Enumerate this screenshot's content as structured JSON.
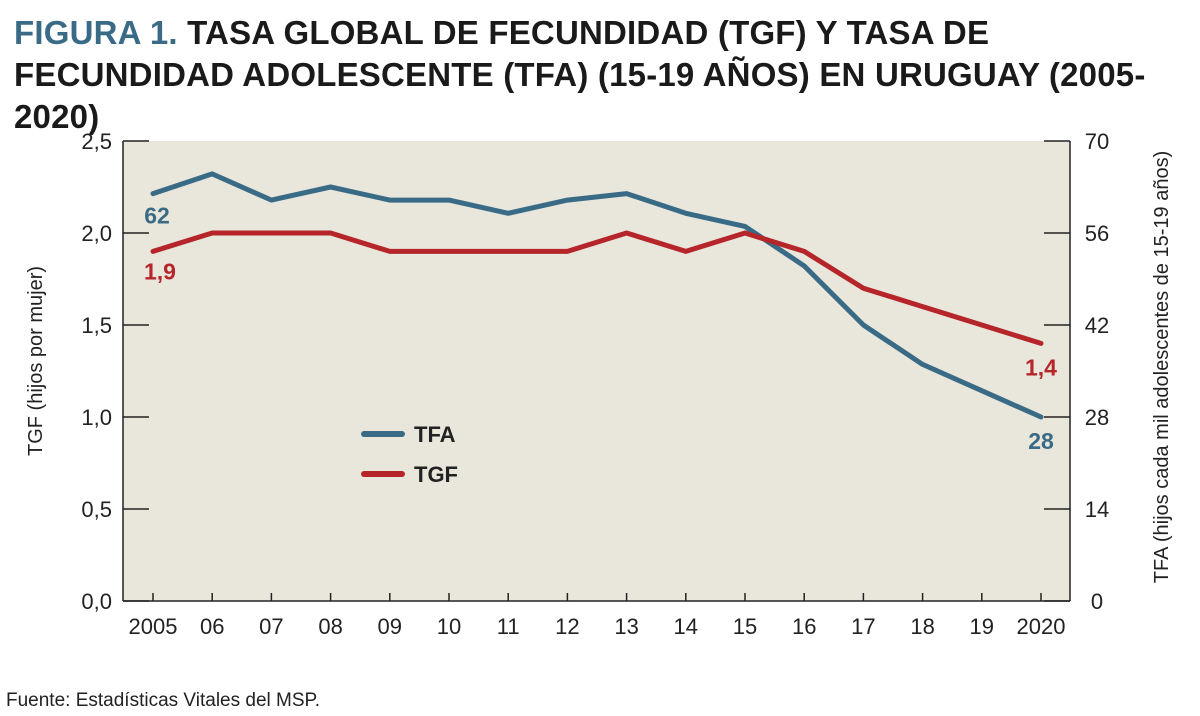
{
  "header": {
    "prefix": "FIGURA 1.",
    "title": "TASA GLOBAL DE FECUNDIDAD (TGF) Y TASA DE FECUNDIDAD ADOLESCENTE (TFA) (15-19 AÑOS) EN URUGUAY (2005-2020)"
  },
  "footer": {
    "source": "Fuente: Estadísticas Vitales del MSP."
  },
  "colors": {
    "tfa": "#3a6b86",
    "tgf": "#b5252a",
    "plot_bg": "#e9e6dc"
  },
  "chart_data": {
    "type": "line",
    "title": "TASA GLOBAL DE FECUNDIDAD (TGF) Y TASA DE FECUNDIDAD ADOLESCENTE (TFA) (15-19 AÑOS) EN URUGUAY (2005-2020)",
    "categories": [
      "2005",
      "06",
      "07",
      "08",
      "09",
      "10",
      "11",
      "12",
      "13",
      "14",
      "15",
      "16",
      "17",
      "18",
      "19",
      "2020"
    ],
    "ylabel_left": "TGF (hijos por mujer)",
    "ylabel_right": "TFA (hijos cada mil adolescentes de 15-19 años)",
    "ylim_left": [
      0,
      2.5
    ],
    "ylim_right": [
      0,
      70
    ],
    "yticks_left": [
      "0,0",
      "0,5",
      "1,0",
      "1,5",
      "2,0",
      "2,5"
    ],
    "yticks_right": [
      "0",
      "14",
      "28",
      "42",
      "56",
      "70"
    ],
    "legend_position": "center-left",
    "grid": false,
    "series": [
      {
        "name": "TFA",
        "axis": "right",
        "color": "#3a6b86",
        "values": [
          62,
          65,
          61,
          63,
          61,
          61,
          59,
          61,
          62,
          59,
          57,
          51,
          42,
          36,
          32,
          28
        ],
        "labels": {
          "first": "62",
          "last": "28"
        }
      },
      {
        "name": "TGF",
        "axis": "left",
        "color": "#b5252a",
        "values": [
          1.9,
          2.0,
          2.0,
          2.0,
          1.9,
          1.9,
          1.9,
          1.9,
          2.0,
          1.9,
          2.0,
          1.9,
          1.7,
          1.6,
          1.5,
          1.4
        ],
        "labels": {
          "first": "1,9",
          "last": "1,4"
        }
      }
    ]
  }
}
